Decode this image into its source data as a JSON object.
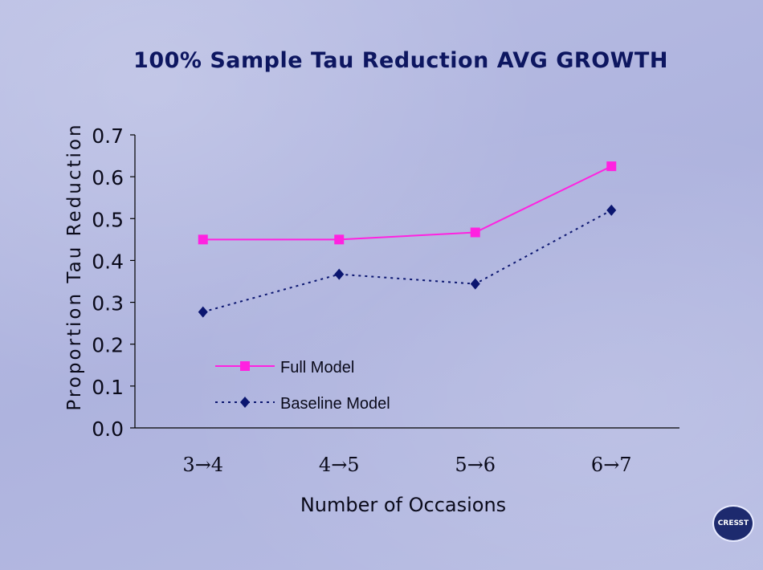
{
  "chart_data": {
    "type": "line",
    "title": "100% Sample Tau Reduction AVG GROWTH",
    "xlabel": "Number of Occasions",
    "ylabel": "Proportion Tau Reduction",
    "categories": [
      "3→4",
      "4→5",
      "5→6",
      "6→7"
    ],
    "ylim": [
      0,
      0.7
    ],
    "yticks": [
      "0.0",
      "0.1",
      "0.2",
      "0.3",
      "0.4",
      "0.5",
      "0.6",
      "0.7"
    ],
    "grid": false,
    "legend_position": "bottom-left",
    "series": [
      {
        "name": "Full Model",
        "values": [
          0.45,
          0.45,
          0.467,
          0.625
        ],
        "color": "#ff22e0",
        "marker": "square",
        "line": "solid"
      },
      {
        "name": "Baseline Model",
        "values": [
          0.277,
          0.367,
          0.344,
          0.52
        ],
        "color": "#0b1670",
        "marker": "diamond",
        "line": "dotted"
      }
    ]
  },
  "logo": {
    "text": "CRESST"
  }
}
